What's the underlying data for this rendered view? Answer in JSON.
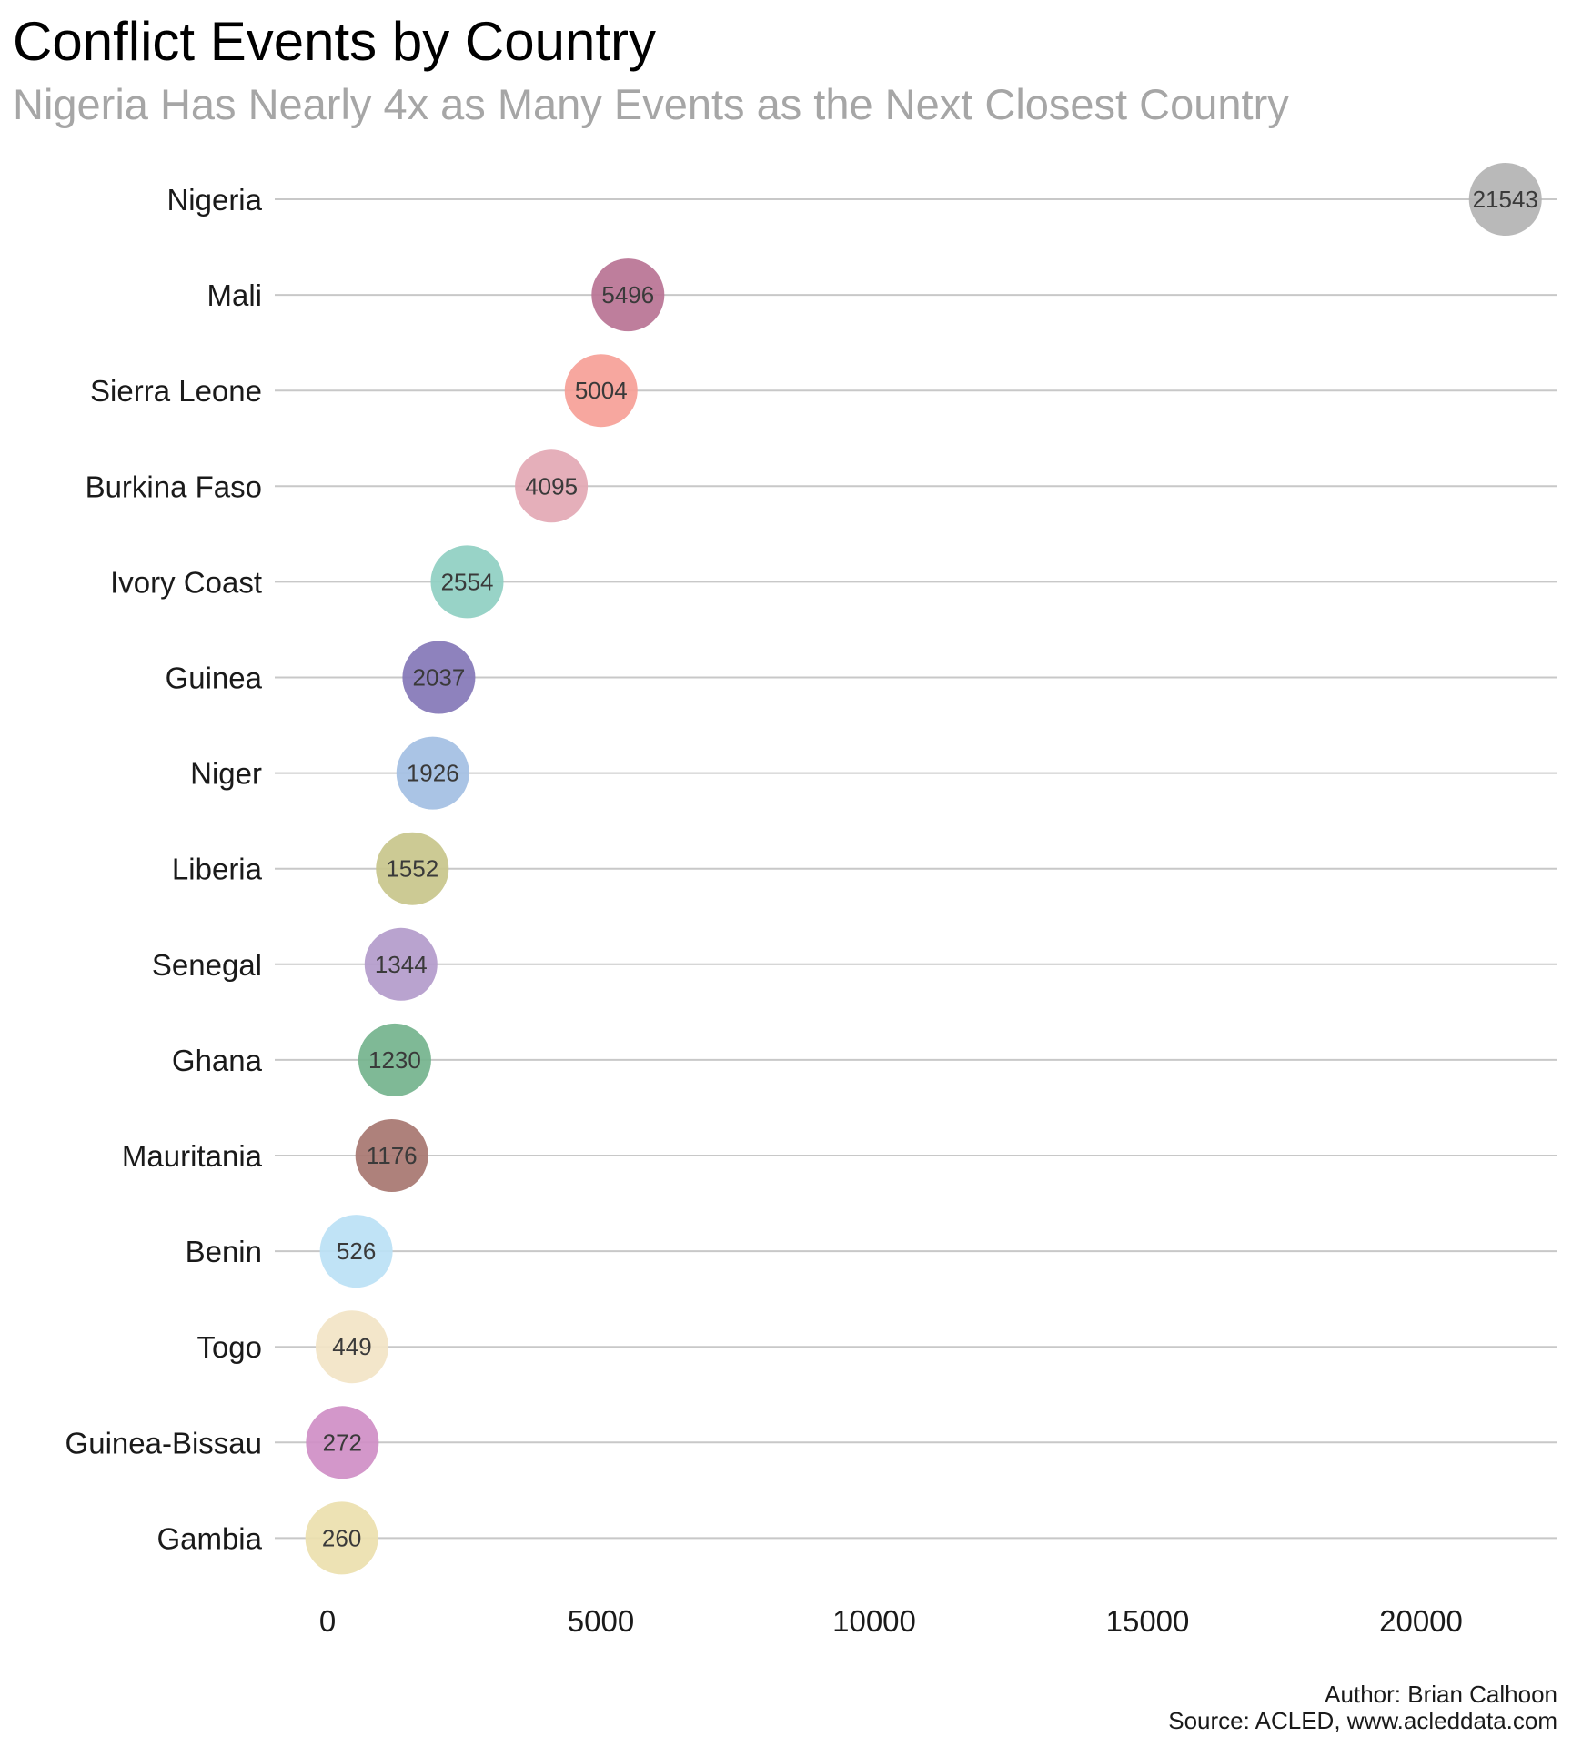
{
  "chart_data": {
    "type": "scatter",
    "title": "Conflict Events by Country",
    "subtitle": "Nigeria Has Nearly 4x as Many Events as the Next Closest Country",
    "xlabel": "",
    "ylabel": "",
    "xlim": [
      0,
      22000
    ],
    "x_ticks": [
      0,
      5000,
      10000,
      15000,
      20000
    ],
    "grid": "horizontal",
    "legend": "none",
    "categories": [
      "Nigeria",
      "Mali",
      "Sierra Leone",
      "Burkina Faso",
      "Ivory Coast",
      "Guinea",
      "Niger",
      "Liberia",
      "Senegal",
      "Ghana",
      "Mauritania",
      "Benin",
      "Togo",
      "Guinea-Bissau",
      "Gambia"
    ],
    "values": [
      21543,
      5496,
      5004,
      4095,
      2554,
      2037,
      1926,
      1552,
      1344,
      1230,
      1176,
      526,
      449,
      272,
      260
    ],
    "colors": [
      "#b3b3b3",
      "#b97394",
      "#f6a097",
      "#e3a8b4",
      "#8fcfc2",
      "#8477b7",
      "#a3bfe3",
      "#c8c58b",
      "#b39bcb",
      "#74b38d",
      "#a77670",
      "#bbe1f5",
      "#f2e4c6",
      "#cf8ec6",
      "#ebdfae"
    ],
    "caption": [
      "Author: Brian Calhoon",
      "Source: ACLED, www.acleddata.com"
    ]
  }
}
